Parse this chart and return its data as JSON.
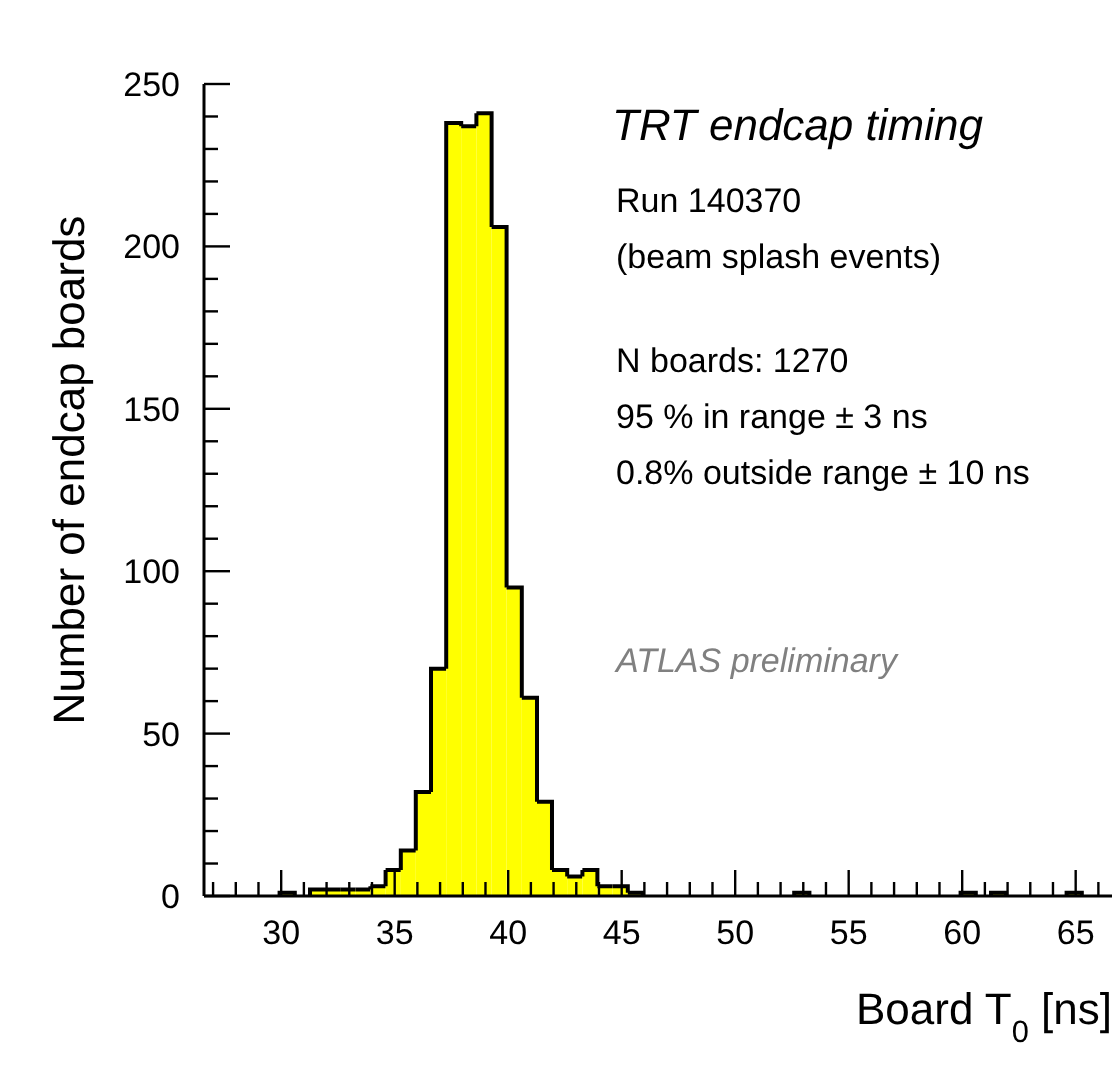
{
  "chart_data": {
    "type": "histogram",
    "title": "TRT endcap timing",
    "xlabel": "Board T$_{0}$ [ns]",
    "ylabel": "Number of endcap boards",
    "annotations": [
      "Run 140370",
      "(beam splash events)",
      "N boards: 1270",
      "95 % in range ± 3 ns",
      "0.8% outside range ± 10 ns",
      "ATLAS preliminary"
    ],
    "bins": [
      26.6,
      27.27,
      27.93,
      28.6,
      29.27,
      29.93,
      30.6,
      31.27,
      31.93,
      32.6,
      33.27,
      33.93,
      34.6,
      35.27,
      35.93,
      36.6,
      37.27,
      37.93,
      38.6,
      39.27,
      39.93,
      40.6,
      41.27,
      41.93,
      42.6,
      43.27,
      43.93,
      44.6,
      45.27,
      45.93,
      46.6,
      47.27,
      47.93,
      48.6,
      49.27,
      49.93,
      50.6,
      51.27,
      51.93,
      52.6,
      53.27,
      53.93,
      54.6,
      55.27,
      55.93,
      56.6,
      57.27,
      57.93,
      58.6,
      59.27,
      59.93,
      60.6,
      61.27,
      61.93,
      62.6,
      63.27,
      63.93,
      64.6,
      65.27,
      65.93,
      66.6
    ],
    "values": [
      0,
      0,
      0,
      0,
      0,
      1,
      0,
      2,
      2,
      2,
      2,
      3,
      8,
      14,
      32,
      70,
      238,
      237,
      241,
      206,
      95,
      61,
      29,
      8,
      6,
      8,
      3,
      3,
      1,
      0,
      0,
      0,
      0,
      0,
      0,
      0,
      0,
      0,
      0,
      1,
      0,
      0,
      0,
      0,
      0,
      0,
      0,
      0,
      0,
      0,
      1,
      0,
      1,
      0,
      0,
      0,
      0,
      1,
      0,
      0
    ],
    "color": "#ffff00",
    "xlim": [
      26.6,
      66.6
    ],
    "xticks": [
      {
        "value": 27,
        "label": null
      },
      {
        "value": 28,
        "label": null
      },
      {
        "value": 29,
        "label": null
      },
      30,
      {
        "value": 31,
        "label": null
      },
      {
        "value": 32,
        "label": null
      },
      {
        "value": 33,
        "label": null
      },
      {
        "value": 34,
        "label": null
      },
      35,
      {
        "value": 36,
        "label": null
      },
      {
        "value": 37,
        "label": null
      },
      {
        "value": 38,
        "label": null
      },
      {
        "value": 39,
        "label": null
      },
      40,
      {
        "value": 41,
        "label": null
      },
      {
        "value": 42,
        "label": null
      },
      {
        "value": 43,
        "label": null
      },
      {
        "value": 44,
        "label": null
      },
      45,
      {
        "value": 46,
        "label": null
      },
      {
        "value": 47,
        "label": null
      },
      {
        "value": 48,
        "label": null
      },
      {
        "value": 49,
        "label": null
      },
      50,
      {
        "value": 51,
        "label": null
      },
      {
        "value": 52,
        "label": null
      },
      {
        "value": 53,
        "label": null
      },
      {
        "value": 54,
        "label": null
      },
      55,
      {
        "value": 56,
        "label": null
      },
      {
        "value": 57,
        "label": null
      },
      {
        "value": 58,
        "label": null
      },
      {
        "value": 59,
        "label": null
      },
      60,
      {
        "value": 61,
        "label": null
      },
      {
        "value": 62,
        "label": null
      },
      {
        "value": 63,
        "label": null
      },
      {
        "value": 64,
        "label": null
      },
      65,
      {
        "value": 66,
        "label": null
      }
    ],
    "ylim": [
      0,
      250
    ],
    "yticks": [
      0,
      {
        "value": 10,
        "label": null
      },
      {
        "value": 20,
        "label": null
      },
      {
        "value": 30,
        "label": null
      },
      {
        "value": 40,
        "label": null
      },
      50,
      {
        "value": 60,
        "label": null
      },
      {
        "value": 70,
        "label": null
      },
      {
        "value": 80,
        "label": null
      },
      {
        "value": 90,
        "label": null
      },
      100,
      {
        "value": 110,
        "label": null
      },
      {
        "value": 120,
        "label": null
      },
      {
        "value": 130,
        "label": null
      },
      {
        "value": 140,
        "label": null
      },
      150,
      {
        "value": 160,
        "label": null
      },
      {
        "value": 170,
        "label": null
      },
      {
        "value": 180,
        "label": null
      },
      {
        "value": 190,
        "label": null
      },
      200,
      {
        "value": 210,
        "label": null
      },
      {
        "value": 220,
        "label": null
      },
      {
        "value": 230,
        "label": null
      },
      {
        "value": 240,
        "label": null
      },
      250
    ],
    "grid": false
  }
}
